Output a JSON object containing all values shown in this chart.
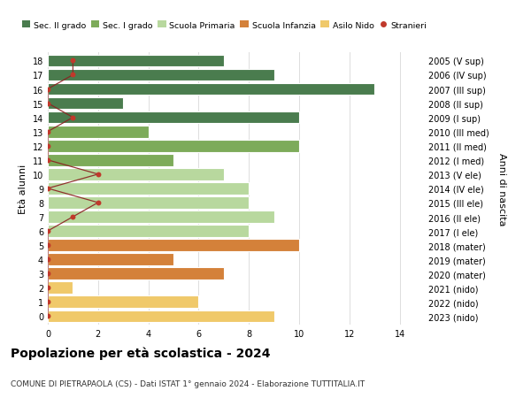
{
  "ages": [
    18,
    17,
    16,
    15,
    14,
    13,
    12,
    11,
    10,
    9,
    8,
    7,
    6,
    5,
    4,
    3,
    2,
    1,
    0
  ],
  "years": [
    "2005 (V sup)",
    "2006 (IV sup)",
    "2007 (III sup)",
    "2008 (II sup)",
    "2009 (I sup)",
    "2010 (III med)",
    "2011 (II med)",
    "2012 (I med)",
    "2013 (V ele)",
    "2014 (IV ele)",
    "2015 (III ele)",
    "2016 (II ele)",
    "2017 (I ele)",
    "2018 (mater)",
    "2019 (mater)",
    "2020 (mater)",
    "2021 (nido)",
    "2022 (nido)",
    "2023 (nido)"
  ],
  "bar_values": [
    7,
    9,
    13,
    3,
    10,
    4,
    10,
    5,
    7,
    8,
    8,
    9,
    8,
    10,
    5,
    7,
    1,
    6,
    9
  ],
  "bar_colors": [
    "#4a7c4e",
    "#4a7c4e",
    "#4a7c4e",
    "#4a7c4e",
    "#4a7c4e",
    "#7dab5a",
    "#7dab5a",
    "#7dab5a",
    "#b8d89e",
    "#b8d89e",
    "#b8d89e",
    "#b8d89e",
    "#b8d89e",
    "#d4813a",
    "#d4813a",
    "#d4813a",
    "#f0c96a",
    "#f0c96a",
    "#f0c96a"
  ],
  "stranieri_x_by_age": {
    "18": 1,
    "17": 1,
    "16": 0,
    "15": 0,
    "14": 1,
    "13": 0,
    "12": 0,
    "11": 0,
    "10": 2,
    "9": 0,
    "8": 2,
    "7": 1,
    "6": 0,
    "5": 0,
    "4": 0,
    "3": 0,
    "2": 0,
    "1": 0,
    "0": 0
  },
  "legend_labels": [
    "Sec. II grado",
    "Sec. I grado",
    "Scuola Primaria",
    "Scuola Infanzia",
    "Asilo Nido",
    "Stranieri"
  ],
  "legend_colors": [
    "#4a7c4e",
    "#7dab5a",
    "#b8d89e",
    "#d4813a",
    "#f0c96a",
    "#c0392b"
  ],
  "title": "Popolazione per età scolastica - 2024",
  "subtitle": "COMUNE DI PIETRAPAOLA (CS) - Dati ISTAT 1° gennaio 2024 - Elaborazione TUTTITALIA.IT",
  "ylabel_left": "Età alunni",
  "ylabel_right": "Anni di nascita",
  "background_color": "#ffffff",
  "grid_color": "#dddddd",
  "bar_height": 0.85
}
